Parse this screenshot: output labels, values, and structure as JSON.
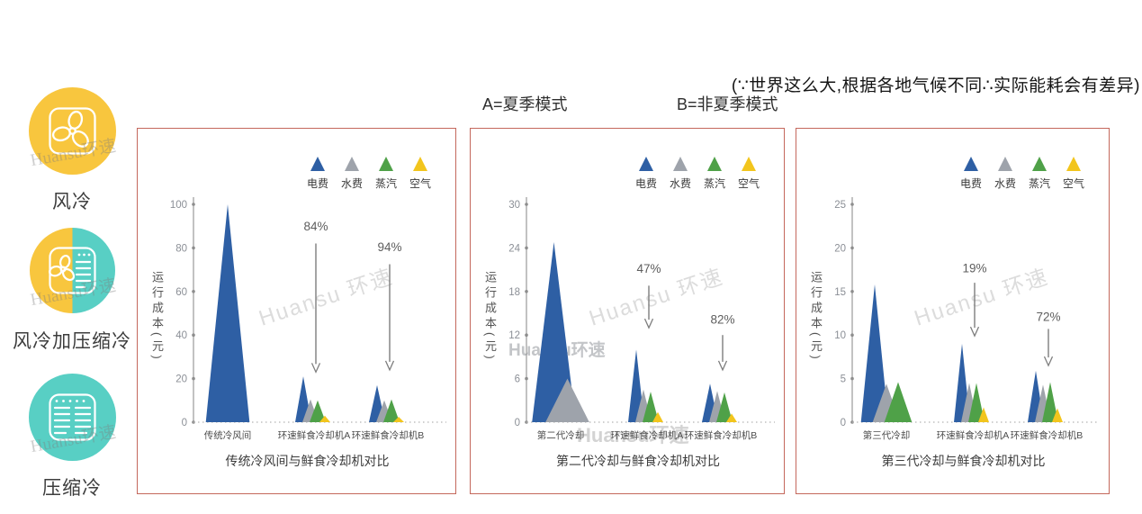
{
  "note": "(∵世界这么大,根据各地气候不同∴实际能耗会有差异)",
  "modes": {
    "a": "A=夏季模式",
    "b": "B=非夏季模式"
  },
  "watermark": {
    "brand": "Huansu环速",
    "brand_spaced": "Huansu 环速",
    "latin": "Huansu"
  },
  "colors": {
    "panel_border": "#C4685C",
    "electric_blue": "#2E5FA4",
    "water_gray": "#9EA3AB",
    "steam_green": "#4FA148",
    "air_yellow": "#F2C51D",
    "icon_yellow": "#F8C63E",
    "icon_teal": "#58CFC4"
  },
  "sidebar": {
    "items": [
      {
        "label": "风冷",
        "icon": "fan-icon",
        "circle_color": "#F8C63E"
      },
      {
        "label": "风冷加压缩冷",
        "icon": "fan-compressor-icon",
        "left_color": "#F8C63E",
        "right_color": "#58CFC4"
      },
      {
        "label": "压缩冷",
        "icon": "compressor-icon",
        "circle_color": "#58CFC4"
      }
    ]
  },
  "legend": [
    {
      "label": "电费",
      "color": "#2E5FA4"
    },
    {
      "label": "水费",
      "color": "#9EA3AB"
    },
    {
      "label": "蒸汽",
      "color": "#4FA148"
    },
    {
      "label": "空气",
      "color": "#F2C51D"
    }
  ],
  "chart_data": [
    {
      "type": "area",
      "title": "传统冷风间与鲜食冷却机对比",
      "ylabel": "运行成本(元)",
      "ylim": [
        0,
        100
      ],
      "yticks": [
        0,
        20,
        40,
        60,
        80,
        100
      ],
      "grid": false,
      "legend_position": "top-right",
      "categories": [
        "传统冷风间",
        "环速鲜食冷却机A",
        "环速鲜食冷却机B"
      ],
      "series": [
        {
          "name": "电费",
          "color": "#2E5FA4",
          "values": [
            100,
            21,
            17
          ]
        },
        {
          "name": "水费",
          "color": "#9EA3AB",
          "values": [
            null,
            10.5,
            10
          ]
        },
        {
          "name": "蒸汽",
          "color": "#4FA148",
          "values": [
            null,
            10,
            10.5
          ]
        },
        {
          "name": "空气",
          "color": "#F2C51D",
          "values": [
            null,
            3,
            2.5
          ]
        }
      ],
      "annotations": [
        {
          "text": "84%",
          "group": 1,
          "label_v": 88,
          "from_v": 82,
          "to_v": 23
        },
        {
          "text": "94%",
          "group": 2,
          "label_v": 78.5,
          "from_v": 72.5,
          "to_v": 24
        }
      ]
    },
    {
      "type": "area",
      "title": "第二代冷却与鲜食冷却机对比",
      "ylabel": "运行成本(元)",
      "ylim": [
        0,
        30
      ],
      "yticks": [
        0,
        6,
        12,
        18,
        24,
        30
      ],
      "grid": false,
      "legend_position": "top-right",
      "categories": [
        "第二代冷却",
        "环速鲜食冷却机A",
        "环速鲜食冷却机B"
      ],
      "series": [
        {
          "name": "电费",
          "color": "#2E5FA4",
          "values": [
            24.8,
            10,
            5.3
          ]
        },
        {
          "name": "水费",
          "color": "#9EA3AB",
          "values": [
            6,
            4.5,
            4.3
          ]
        },
        {
          "name": "蒸汽",
          "color": "#4FA148",
          "values": [
            null,
            4.2,
            4.1
          ]
        },
        {
          "name": "空气",
          "color": "#F2C51D",
          "values": [
            null,
            1.4,
            1.2
          ]
        }
      ],
      "annotations": [
        {
          "text": "47%",
          "group": 1,
          "label_v": 20.6,
          "from_v": 18.8,
          "to_v": 13
        },
        {
          "text": "82%",
          "group": 2,
          "label_v": 13.6,
          "from_v": 12,
          "to_v": 7.2
        }
      ]
    },
    {
      "type": "area",
      "title": "第三代冷却与鲜食冷却机对比",
      "ylabel": "运行成本(元)",
      "ylim": [
        0,
        25
      ],
      "yticks": [
        0,
        5,
        10,
        15,
        20,
        25
      ],
      "grid": false,
      "legend_position": "top-right",
      "categories": [
        "第三代冷却",
        "环速鲜食冷却机A",
        "环速鲜食冷却机B"
      ],
      "series": [
        {
          "name": "电费",
          "color": "#2E5FA4",
          "values": [
            15.8,
            9,
            5.9
          ]
        },
        {
          "name": "水费",
          "color": "#9EA3AB",
          "values": [
            4.4,
            4.5,
            4.3
          ]
        },
        {
          "name": "蒸汽",
          "color": "#4FA148",
          "values": [
            4.6,
            4.5,
            4.6
          ]
        },
        {
          "name": "空气",
          "color": "#F2C51D",
          "values": [
            null,
            1.7,
            1.6
          ]
        }
      ],
      "annotations": [
        {
          "text": "19%",
          "group": 1,
          "label_v": 17.2,
          "from_v": 16,
          "to_v": 9.9
        },
        {
          "text": "72%",
          "group": 2,
          "label_v": 11.6,
          "from_v": 10.7,
          "to_v": 6.5
        }
      ]
    }
  ]
}
